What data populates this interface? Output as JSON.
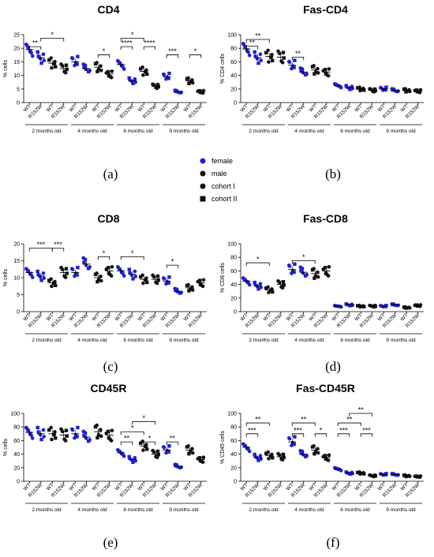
{
  "legend": {
    "entries": [
      {
        "label": "female",
        "color": "#1f1fd8",
        "marker": "circle"
      },
      {
        "label": "male",
        "color": "#111111",
        "marker": "circle"
      },
      {
        "label": "cohort I",
        "color": "#111111",
        "marker": "circle"
      },
      {
        "label": "cohort II",
        "color": "#111111",
        "marker": "square"
      }
    ]
  },
  "colors": {
    "female": "#1f1fd8",
    "male": "#111111"
  },
  "chart_data": [
    {
      "id": "a",
      "panel_label": "(a)",
      "type": "scatter",
      "title": "CD4",
      "ylabel": "% cells",
      "ylim": [
        0,
        25
      ],
      "yticks": [
        0,
        5,
        10,
        15,
        20,
        25
      ],
      "groups": [
        "2 months old",
        "4 months old",
        "6 months old",
        "9 months old"
      ],
      "categories": [
        "WT",
        "R152W",
        "WT",
        "R152W",
        "WT",
        "R152W",
        "WT",
        "R152W",
        "WT",
        "R152W",
        "WT",
        "R152W",
        "WT",
        "R152W",
        "WT",
        "R152W"
      ],
      "sex": [
        "female",
        "female",
        "male",
        "male",
        "female",
        "female",
        "male",
        "male",
        "female",
        "female",
        "male",
        "male",
        "female",
        "female",
        "male",
        "male"
      ],
      "means": [
        19.5,
        16.5,
        14.5,
        12.5,
        15,
        12.5,
        13,
        10.5,
        14,
        8,
        11.5,
        6,
        9.5,
        4,
        8,
        4
      ],
      "significance": [
        {
          "from": 0,
          "to": 1,
          "label": "**",
          "y": 20.6
        },
        {
          "from": 1,
          "to": 3,
          "label": "*",
          "y": 23.7
        },
        {
          "from": 6,
          "to": 7,
          "label": "*",
          "y": 17.6
        },
        {
          "from": 8,
          "to": 9,
          "label": "****",
          "y": 20.6
        },
        {
          "from": 8,
          "to": 10,
          "label": "*",
          "y": 23.7
        },
        {
          "from": 10,
          "to": 11,
          "label": "****",
          "y": 20.6
        },
        {
          "from": 12,
          "to": 13,
          "label": "***",
          "y": 17.6
        },
        {
          "from": 14,
          "to": 15,
          "label": "*",
          "y": 17.6
        }
      ]
    },
    {
      "id": "b",
      "panel_label": "(b)",
      "type": "scatter",
      "title": "Fas-CD4",
      "ylabel": "% CD4 cells",
      "ylim": [
        0,
        100
      ],
      "yticks": [
        0,
        20,
        40,
        60,
        80,
        100
      ],
      "groups": [
        "2 months old",
        "4 months old",
        "6 months old",
        "9 months old"
      ],
      "categories": [
        "WT",
        "R152W",
        "WT",
        "R152W",
        "WT",
        "R152W",
        "WT",
        "R152W",
        "WT",
        "R152W",
        "WT",
        "R152W",
        "WT",
        "R152W",
        "WT",
        "R152W"
      ],
      "sex": [
        "female",
        "female",
        "male",
        "male",
        "female",
        "female",
        "male",
        "male",
        "female",
        "female",
        "male",
        "male",
        "female",
        "female",
        "male",
        "male"
      ],
      "means": [
        79,
        66,
        68,
        67,
        55,
        45,
        48,
        45,
        25,
        22,
        20,
        18,
        20,
        18,
        18,
        17
      ],
      "significance": [
        {
          "from": 0,
          "to": 1,
          "label": "**",
          "y": 83
        },
        {
          "from": 0,
          "to": 2,
          "label": "**",
          "y": 93
        },
        {
          "from": 4,
          "to": 5,
          "label": "**",
          "y": 67
        }
      ]
    },
    {
      "id": "c",
      "panel_label": "(c)",
      "type": "scatter",
      "title": "CD8",
      "ylabel": "% cells",
      "ylim": [
        0,
        20
      ],
      "yticks": [
        0,
        5,
        10,
        15,
        20
      ],
      "groups": [
        "2 months old",
        "4 months old",
        "6 months old",
        "9 months old"
      ],
      "categories": [
        "WT",
        "R152W",
        "WT",
        "R152W",
        "WT",
        "R152W",
        "WT",
        "R152W",
        "WT",
        "R152W",
        "WT",
        "R152W",
        "WT",
        "R152W",
        "WT",
        "R152W"
      ],
      "sex": [
        "female",
        "female",
        "male",
        "male",
        "female",
        "female",
        "male",
        "male",
        "female",
        "female",
        "male",
        "male",
        "female",
        "female",
        "male",
        "male"
      ],
      "means": [
        11.5,
        10.5,
        8.5,
        11.5,
        11.5,
        14,
        10,
        12,
        12,
        11,
        9.5,
        9.5,
        9,
        6,
        7,
        8.5
      ],
      "significance": [
        {
          "from": 0,
          "to": 2,
          "label": "***",
          "y": 18.7
        },
        {
          "from": 2,
          "to": 3,
          "label": "***",
          "y": 18.7
        },
        {
          "from": 6,
          "to": 7,
          "label": "*",
          "y": 16.2
        },
        {
          "from": 8,
          "to": 10,
          "label": "*",
          "y": 16.2
        },
        {
          "from": 12,
          "to": 13,
          "label": "*",
          "y": 13.7
        }
      ]
    },
    {
      "id": "d",
      "panel_label": "(d)",
      "type": "scatter",
      "title": "Fas-CD8",
      "ylabel": "% CD8 cells",
      "ylim": [
        0,
        100
      ],
      "yticks": [
        0,
        20,
        40,
        60,
        80,
        100
      ],
      "groups": [
        "2 months old",
        "4 months old",
        "6 months old",
        "9 months old"
      ],
      "categories": [
        "WT",
        "R152W",
        "WT",
        "R152W",
        "WT",
        "R152W",
        "WT",
        "R152W",
        "WT",
        "R152W",
        "WT",
        "R152W",
        "WT",
        "R152W",
        "WT",
        "R152W"
      ],
      "sex": [
        "female",
        "female",
        "male",
        "male",
        "female",
        "female",
        "male",
        "male",
        "female",
        "female",
        "male",
        "male",
        "female",
        "female",
        "male",
        "male"
      ],
      "means": [
        45,
        38,
        32,
        40,
        62,
        58,
        56,
        60,
        8,
        10,
        8,
        8,
        8,
        10,
        6,
        9
      ],
      "significance": [
        {
          "from": 0,
          "to": 2,
          "label": "*",
          "y": 72
        },
        {
          "from": 4,
          "to": 6,
          "label": "*",
          "y": 75
        }
      ]
    },
    {
      "id": "e",
      "panel_label": "(e)",
      "type": "scatter",
      "title": "CD45R",
      "ylabel": "% cells",
      "ylim": [
        0,
        100
      ],
      "yticks": [
        0,
        20,
        40,
        60,
        80,
        100
      ],
      "groups": [
        "2 months old",
        "4 months old",
        "6 months old",
        "9 months old"
      ],
      "categories": [
        "WT",
        "R152W",
        "WT",
        "R152W",
        "WT",
        "R152W",
        "WT",
        "R152W",
        "WT",
        "R152W",
        "WT",
        "R152W",
        "WT",
        "R152W",
        "WT",
        "R152W"
      ],
      "sex": [
        "female",
        "female",
        "male",
        "male",
        "female",
        "female",
        "male",
        "male",
        "female",
        "female",
        "male",
        "male",
        "female",
        "female",
        "male",
        "male"
      ],
      "means": [
        72,
        70,
        70,
        68,
        70,
        65,
        73,
        68,
        42,
        32,
        52,
        40,
        46,
        22,
        46,
        32
      ],
      "significance": [
        {
          "from": 8,
          "to": 9,
          "label": "**",
          "y": 58
        },
        {
          "from": 8,
          "to": 10,
          "label": "*",
          "y": 73
        },
        {
          "from": 9,
          "to": 11,
          "label": "*",
          "y": 88
        },
        {
          "from": 10,
          "to": 11,
          "label": "*",
          "y": 58
        },
        {
          "from": 12,
          "to": 13,
          "label": "**",
          "y": 58
        }
      ]
    },
    {
      "id": "f",
      "panel_label": "(f)",
      "type": "scatter",
      "title": "Fas-CD45R",
      "ylabel": "% CD45 cells",
      "ylim": [
        0,
        100
      ],
      "yticks": [
        0,
        20,
        40,
        60,
        80,
        100
      ],
      "groups": [
        "2 months old",
        "4 months old",
        "6 months old",
        "9 months old"
      ],
      "categories": [
        "WT",
        "R152W",
        "WT",
        "R152W",
        "WT",
        "R152W",
        "WT",
        "R152W",
        "WT",
        "R152W",
        "WT",
        "R152W",
        "WT",
        "R152W",
        "WT",
        "R152W"
      ],
      "sex": [
        "female",
        "female",
        "male",
        "male",
        "female",
        "female",
        "male",
        "male",
        "female",
        "female",
        "male",
        "male",
        "female",
        "female",
        "male",
        "male"
      ],
      "means": [
        50,
        35,
        38,
        36,
        58,
        40,
        46,
        35,
        18,
        12,
        12,
        8,
        10,
        10,
        8,
        7
      ],
      "significance": [
        {
          "from": 0,
          "to": 1,
          "label": "***",
          "y": 70
        },
        {
          "from": 0,
          "to": 2,
          "label": "**",
          "y": 86
        },
        {
          "from": 4,
          "to": 5,
          "label": "***",
          "y": 70
        },
        {
          "from": 4,
          "to": 6,
          "label": "**",
          "y": 86
        },
        {
          "from": 6,
          "to": 7,
          "label": "*",
          "y": 70
        },
        {
          "from": 8,
          "to": 9,
          "label": "***",
          "y": 70
        },
        {
          "from": 8,
          "to": 10,
          "label": "**",
          "y": 86
        },
        {
          "from": 9,
          "to": 11,
          "label": "**",
          "y": 100
        },
        {
          "from": 10,
          "to": 11,
          "label": "***",
          "y": 70
        }
      ]
    }
  ]
}
